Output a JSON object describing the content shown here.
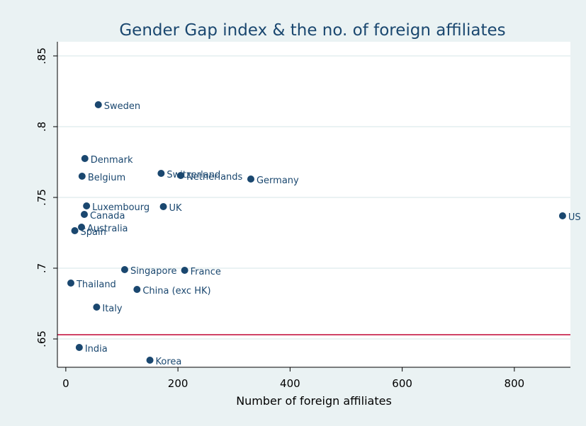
{
  "chart_data": {
    "type": "scatter",
    "title": "Gender Gap index & the no. of foreign affiliates",
    "xlabel": "Number of foreign affiliates",
    "ylabel": "",
    "xlim": [
      -15,
      900
    ],
    "ylim": [
      0.63,
      0.86
    ],
    "xticks": [
      0,
      200,
      400,
      600,
      800
    ],
    "xtick_labels": [
      "0",
      "200",
      "400",
      "600",
      "800"
    ],
    "yticks": [
      0.65,
      0.7,
      0.75,
      0.8,
      0.85
    ],
    "ytick_labels": [
      ".65",
      ".7",
      ".75",
      ".8",
      ".85"
    ],
    "grid": "horizontal",
    "marker_color": "#1a476f",
    "reference_line": {
      "y": 0.653,
      "color": "#c10534"
    },
    "points": [
      {
        "label": "Sweden",
        "x": 58,
        "y": 0.8155
      },
      {
        "label": "Denmark",
        "x": 34,
        "y": 0.7775
      },
      {
        "label": "Belgium",
        "x": 29,
        "y": 0.765
      },
      {
        "label": "Switzerland",
        "x": 170,
        "y": 0.767
      },
      {
        "label": "Netherlands",
        "x": 205,
        "y": 0.7655
      },
      {
        "label": "Germany",
        "x": 330,
        "y": 0.763
      },
      {
        "label": "Luxembourg",
        "x": 37,
        "y": 0.744
      },
      {
        "label": "UK",
        "x": 174,
        "y": 0.7435
      },
      {
        "label": "Canada",
        "x": 33,
        "y": 0.738
      },
      {
        "label": "US",
        "x": 886,
        "y": 0.737
      },
      {
        "label": "Australia",
        "x": 28,
        "y": 0.729
      },
      {
        "label": "Spain",
        "x": 16,
        "y": 0.7265
      },
      {
        "label": "Singapore",
        "x": 105,
        "y": 0.699
      },
      {
        "label": "France",
        "x": 212,
        "y": 0.6985
      },
      {
        "label": "Thailand",
        "x": 9,
        "y": 0.6895
      },
      {
        "label": "China (exc HK)",
        "x": 127,
        "y": 0.685
      },
      {
        "label": "Italy",
        "x": 55,
        "y": 0.6725
      },
      {
        "label": "India",
        "x": 24,
        "y": 0.644
      },
      {
        "label": "Korea",
        "x": 150,
        "y": 0.635
      }
    ]
  }
}
